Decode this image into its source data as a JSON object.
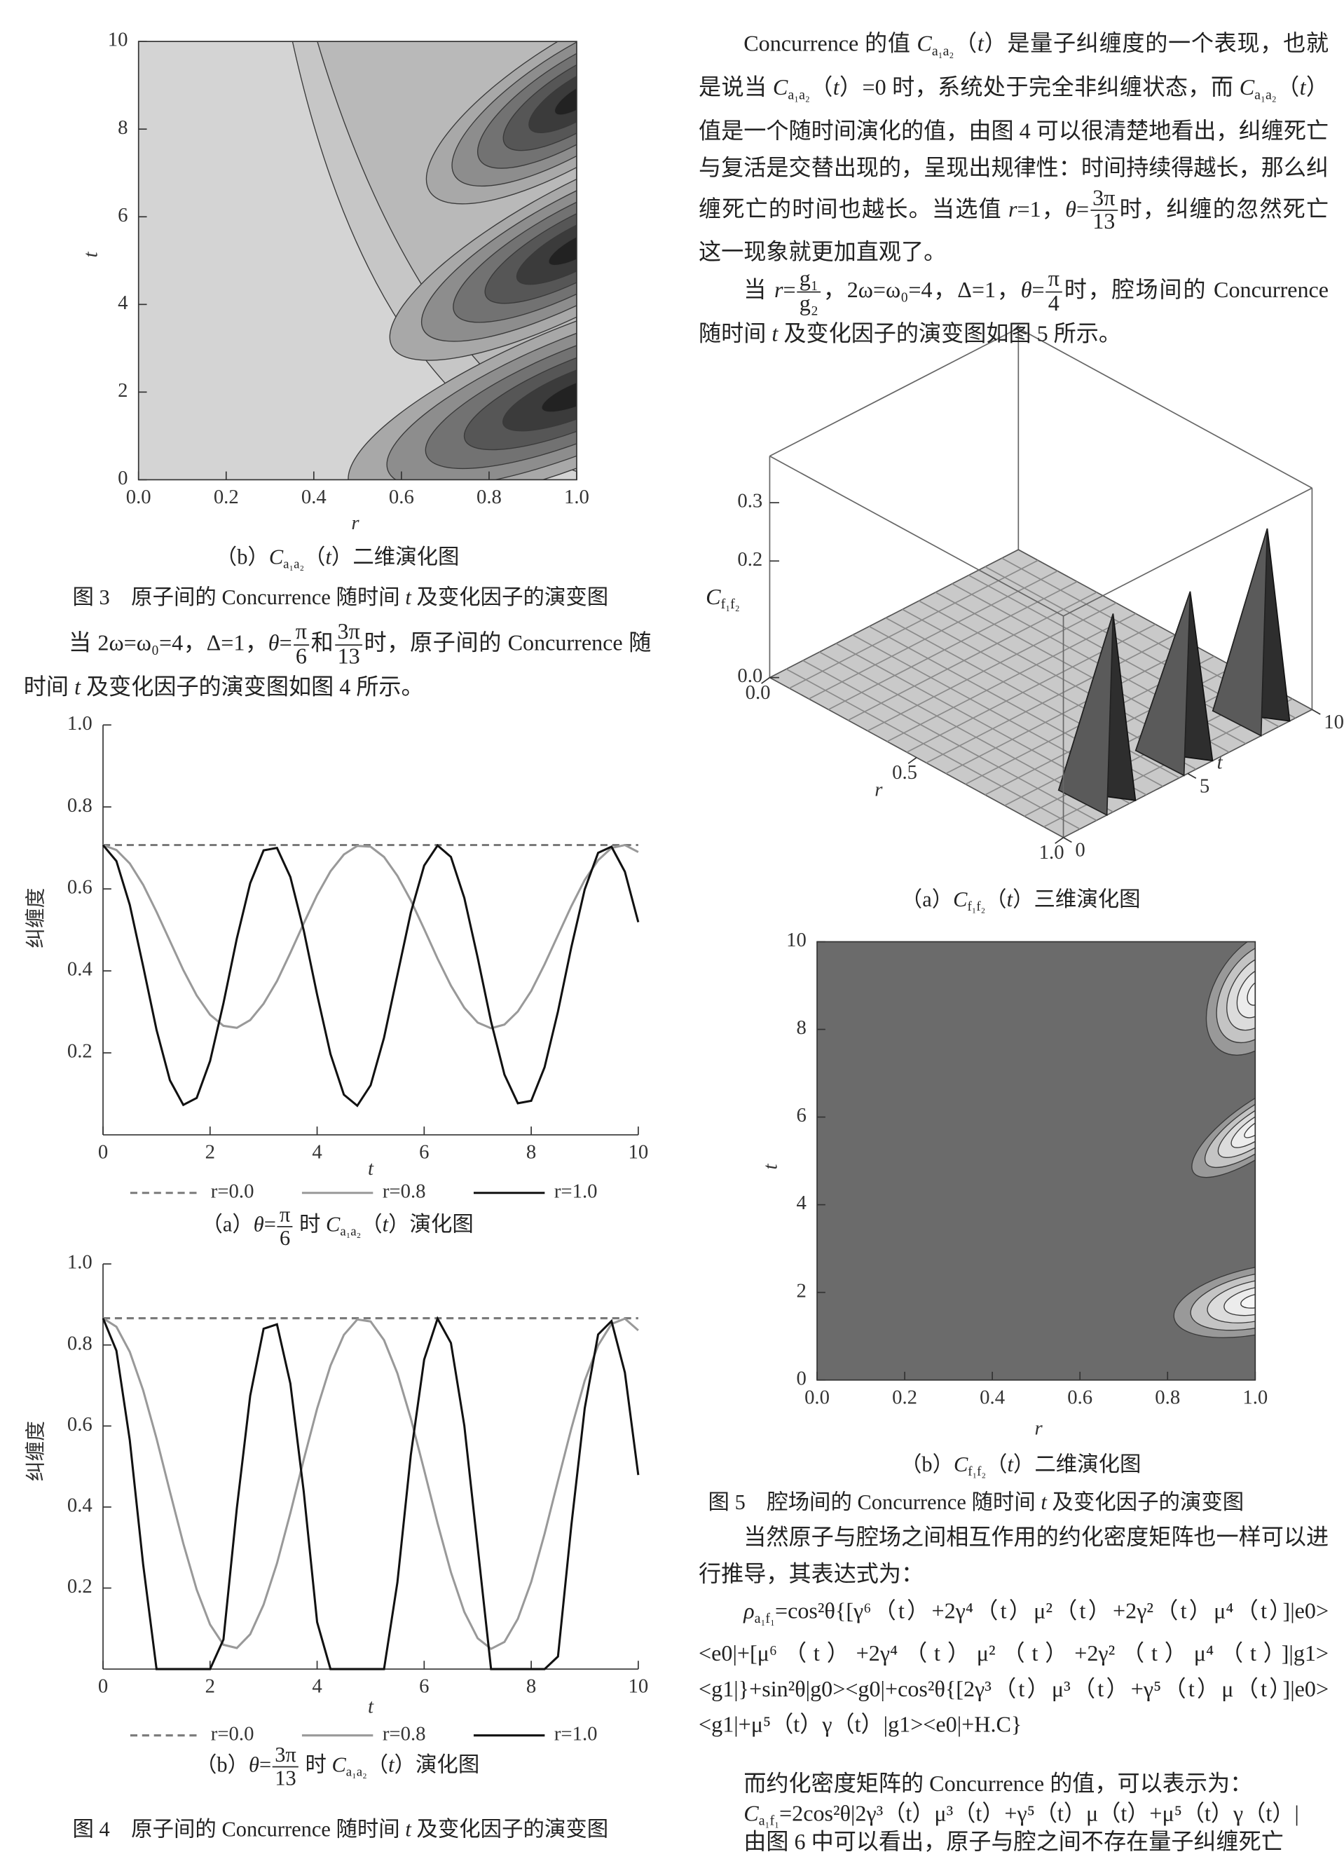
{
  "chart_data": [
    {
      "type": "contour",
      "xlabel": "r",
      "ylabel": "t",
      "xlim": [
        0,
        1
      ],
      "ylim": [
        0,
        10
      ],
      "xticks": [
        {
          "value": 0,
          "label": "0.0"
        },
        0.2,
        0.4,
        0.6,
        0.8,
        {
          "value": 1,
          "label": "1.0"
        }
      ],
      "yticks": [
        0,
        2,
        4,
        6,
        8,
        10
      ],
      "caption": [
        "（b）",
        {
          "i": "C"
        },
        {
          "sub": "a₁a₂"
        },
        "（",
        {
          "i": "t"
        },
        "）二维演化图"
      ]
    },
    {
      "type": "line",
      "xlabel": "t",
      "ylabel": "纠缠度",
      "xlim": [
        0,
        10
      ],
      "ylim": [
        0,
        1
      ],
      "xticks": [
        0,
        2,
        4,
        6,
        8,
        10
      ],
      "yticks": [
        0.2,
        0.4,
        0.6,
        0.8,
        {
          "value": 1,
          "label": "1.0"
        }
      ],
      "x": [
        0,
        0.25,
        0.5,
        0.75,
        1,
        1.25,
        1.5,
        1.75,
        2,
        2.25,
        2.5,
        2.75,
        3,
        3.25,
        3.5,
        3.75,
        4,
        4.25,
        4.5,
        4.75,
        5,
        5.25,
        5.5,
        5.75,
        6,
        6.25,
        6.5,
        6.75,
        7,
        7.25,
        7.5,
        7.75,
        8,
        8.25,
        8.5,
        8.75,
        9,
        9.25,
        9.5,
        9.75,
        10
      ],
      "series": [
        {
          "name": "r=0.0",
          "color": "#7a7a7a",
          "linestyle": "dashed",
          "values": [
            0.707,
            0.707,
            0.707,
            0.707,
            0.707,
            0.707,
            0.707,
            0.707,
            0.707,
            0.707,
            0.707,
            0.707,
            0.707,
            0.707,
            0.707,
            0.707,
            0.707,
            0.707,
            0.707,
            0.707,
            0.707,
            0.707,
            0.707,
            0.707,
            0.707,
            0.707,
            0.707,
            0.707,
            0.707,
            0.707,
            0.707,
            0.707,
            0.707,
            0.707,
            0.707,
            0.707,
            0.707,
            0.707,
            0.707,
            0.707,
            0.707
          ]
        },
        {
          "name": "r=0.8",
          "color": "#999999",
          "linestyle": "solid",
          "values": [
            0.707,
            0.695,
            0.662,
            0.61,
            0.544,
            0.473,
            0.402,
            0.34,
            0.293,
            0.266,
            0.261,
            0.28,
            0.32,
            0.375,
            0.444,
            0.516,
            0.585,
            0.643,
            0.684,
            0.705,
            0.703,
            0.678,
            0.632,
            0.572,
            0.502,
            0.43,
            0.364,
            0.31,
            0.274,
            0.26,
            0.269,
            0.301,
            0.351,
            0.416,
            0.487,
            0.558,
            0.622,
            0.67,
            0.7,
            0.707,
            0.69
          ]
        },
        {
          "name": "r=1.0",
          "color": "#111111",
          "linestyle": "solid",
          "values": [
            0.707,
            0.668,
            0.561,
            0.411,
            0.256,
            0.133,
            0.073,
            0.09,
            0.18,
            0.321,
            0.479,
            0.614,
            0.694,
            0.7,
            0.629,
            0.499,
            0.342,
            0.197,
            0.098,
            0.071,
            0.121,
            0.237,
            0.39,
            0.542,
            0.657,
            0.706,
            0.678,
            0.578,
            0.432,
            0.276,
            0.147,
            0.077,
            0.083,
            0.165,
            0.301,
            0.458,
            0.599,
            0.688,
            0.703,
            0.642,
            0.519
          ]
        }
      ],
      "caption": [
        "（a）",
        {
          "i": "θ"
        },
        "=",
        {
          "frac": [
            "π",
            "6"
          ]
        },
        " 时 ",
        {
          "i": "C"
        },
        {
          "sub": "a₁a₂"
        },
        "（",
        {
          "i": "t"
        },
        "）演化图"
      ]
    },
    {
      "type": "line",
      "xlabel": "t",
      "ylabel": "纠缠度",
      "xlim": [
        0,
        10
      ],
      "ylim": [
        0,
        1
      ],
      "xticks": [
        0,
        2,
        4,
        6,
        8,
        10
      ],
      "yticks": [
        0.2,
        0.4,
        0.6,
        0.8,
        {
          "value": 1,
          "label": "1.0"
        }
      ],
      "x": [
        0,
        0.25,
        0.5,
        0.75,
        1,
        1.25,
        1.5,
        1.75,
        2,
        2.25,
        2.5,
        2.75,
        3,
        3.25,
        3.5,
        3.75,
        4,
        4.25,
        4.5,
        4.75,
        5,
        5.25,
        5.5,
        5.75,
        6,
        6.25,
        6.5,
        6.75,
        7,
        7.25,
        7.5,
        7.75,
        8,
        8.25,
        8.5,
        8.75,
        9,
        9.25,
        9.5,
        9.75,
        10
      ],
      "series": [
        {
          "name": "r=0.0",
          "color": "#7a7a7a",
          "linestyle": "dashed",
          "values": [
            0.866,
            0.866,
            0.866,
            0.866,
            0.866,
            0.866,
            0.866,
            0.866,
            0.866,
            0.866,
            0.866,
            0.866,
            0.866,
            0.866,
            0.866,
            0.866,
            0.866,
            0.866,
            0.866,
            0.866,
            0.866,
            0.866,
            0.866,
            0.866,
            0.866,
            0.866,
            0.866,
            0.866,
            0.866,
            0.866,
            0.866,
            0.866,
            0.866,
            0.866,
            0.866,
            0.866,
            0.866,
            0.866,
            0.866,
            0.866,
            0.866
          ]
        },
        {
          "name": "r=0.8",
          "color": "#999999",
          "linestyle": "solid",
          "values": [
            0.866,
            0.845,
            0.783,
            0.688,
            0.569,
            0.438,
            0.31,
            0.196,
            0.11,
            0.06,
            0.052,
            0.086,
            0.159,
            0.261,
            0.385,
            0.517,
            0.643,
            0.749,
            0.825,
            0.863,
            0.858,
            0.812,
            0.73,
            0.619,
            0.491,
            0.36,
            0.239,
            0.141,
            0.076,
            0.05,
            0.067,
            0.124,
            0.215,
            0.334,
            0.465,
            0.594,
            0.712,
            0.799,
            0.852,
            0.865,
            0.836
          ]
        },
        {
          "name": "r=1.0",
          "color": "#111111",
          "linestyle": "solid",
          "values": [
            0.866,
            0.786,
            0.565,
            0.258,
            0,
            0,
            0,
            0,
            0,
            0.073,
            0.397,
            0.675,
            0.84,
            0.851,
            0.705,
            0.438,
            0.116,
            0,
            0,
            0,
            0,
            0,
            0.214,
            0.528,
            0.764,
            0.865,
            0.805,
            0.601,
            0.301,
            0,
            0,
            0,
            0,
            0,
            0.031,
            0.355,
            0.644,
            0.826,
            0.859,
            0.732,
            0.479
          ]
        }
      ],
      "caption": [
        "（b）",
        {
          "i": "θ"
        },
        "=",
        {
          "frac": [
            "3π",
            "13"
          ]
        },
        " 时 ",
        {
          "i": "C"
        },
        {
          "sub": "a₁a₂"
        },
        "（",
        {
          "i": "t"
        },
        "）演化图"
      ]
    },
    {
      "type": "surface3d",
      "xlabel": "r",
      "ylabel": "t",
      "zlabel": [
        {
          "i": "C"
        },
        {
          "sub": "f₁f₂"
        }
      ],
      "xlim": [
        0,
        1
      ],
      "ylim": [
        0,
        10
      ],
      "zlim": [
        0,
        0.38
      ],
      "xticks": [
        {
          "value": 0,
          "label": "0.0"
        },
        0.5,
        {
          "value": 1,
          "label": "1.0"
        }
      ],
      "yticks": [
        0,
        5,
        10
      ],
      "zticks": [
        {
          "value": 0,
          "label": "0.0"
        },
        0.2,
        0.3
      ],
      "caption": [
        "（a）",
        {
          "i": "C"
        },
        {
          "sub": "f₁f₂"
        },
        "（",
        {
          "i": "t"
        },
        "）三维演化图"
      ]
    },
    {
      "type": "contour",
      "xlabel": "r",
      "ylabel": "t",
      "xlim": [
        0,
        1
      ],
      "ylim": [
        0,
        10
      ],
      "xticks": [
        {
          "value": 0,
          "label": "0.0"
        },
        0.2,
        0.4,
        0.6,
        0.8,
        {
          "value": 1,
          "label": "1.0"
        }
      ],
      "yticks": [
        0,
        2,
        4,
        6,
        8,
        10
      ],
      "caption": [
        "（b）",
        {
          "i": "C"
        },
        {
          "sub": "f₁f₂"
        },
        "（",
        {
          "i": "t"
        },
        "）二维演化图"
      ]
    }
  ],
  "text": {
    "paragraph_1": [
      "Concurrence 的值 ",
      {
        "i": "C"
      },
      {
        "sub": "a₁a₂"
      },
      "（",
      {
        "i": "t"
      },
      "）是量子纠缠度的一个表现，也就是说当 ",
      {
        "i": "C"
      },
      {
        "sub": "a₁a₂"
      },
      "（",
      {
        "i": "t"
      },
      "）=0 时，系统处于完全非纠缠状态，而 ",
      {
        "i": "C"
      },
      {
        "sub": "a₁a₂"
      },
      "（",
      {
        "i": "t"
      },
      "）值是一个随时间演化的值，由图 4 可以很清楚地看出，纠缠死亡与复活是交替出现的，呈现出规律性：时间持续得越长，那么纠缠死亡的时间也越长。当选值 ",
      {
        "i": "r"
      },
      "=1，",
      {
        "i": "θ"
      },
      "=",
      {
        "frac": [
          "3π",
          "13"
        ]
      },
      "时，纠缠的忽然死亡这一现象就更加直观了。"
    ],
    "paragraph_2": [
      "当 ",
      {
        "i": "r"
      },
      "=",
      {
        "frac": [
          "g₁",
          "g₂"
        ]
      },
      "，2ω=ω₀=4，Δ=1，",
      {
        "i": "θ"
      },
      "=",
      {
        "frac": [
          "π",
          "4"
        ]
      },
      "时，腔场间的 Concurrence 随时间 ",
      {
        "i": "t"
      },
      " 及变化因子的演变图如图 5 所示。"
    ],
    "figure_3_caption": [
      "图 3　原子间的 Concurrence 随时间 ",
      {
        "i": "t"
      },
      " 及变化因子的演变图"
    ],
    "paragraph_3": [
      "当 2ω=ω₀=4，Δ=1，",
      {
        "i": "θ"
      },
      "=",
      {
        "frac": [
          "π",
          "6"
        ]
      },
      "和",
      {
        "frac": [
          "3π",
          "13"
        ]
      },
      "时，原子间的 Concurrence 随时间 ",
      {
        "i": "t"
      },
      " 及变化因子的演变图如图 4 所示。"
    ],
    "figure_4_caption": [
      "图 4　原子间的 Concurrence 随时间 ",
      {
        "i": "t"
      },
      " 及变化因子的演变图"
    ],
    "figure_5_caption": [
      "图 5　腔场间的 Concurrence 随时间 ",
      {
        "i": "t"
      },
      " 及变化因子的演变图"
    ],
    "paragraph_4": [
      "当然原子与腔场之间相互作用的约化密度矩阵也一样可以进行推导，其表达式为："
    ],
    "formula_1": [
      {
        "i": "ρ"
      },
      {
        "sub": "a₁f₁"
      },
      "=cos²θ{[γ⁶（t）+2γ⁴（t）μ²（t）+2γ²（t）μ⁴（t）]|e0><e0|+[μ⁶（t）+2γ⁴（t）μ²（t）+2γ²（t）μ⁴（t）]|g1><g1|}+sin²θ|g0><g0|+cos²θ{[2γ³（t）μ³（t）+γ⁵（t）μ（t）]|e0><g1|+μ⁵（t）γ（t）|g1><e0|+H.C}"
    ],
    "paragraph_5": [
      "而约化密度矩阵的 Concurrence 的值，可以表示为："
    ],
    "formula_2": [
      {
        "i": "C"
      },
      {
        "sub": "a₁f₁"
      },
      "=2cos²θ|2γ³（t）μ³（t）+γ⁵（t）μ（t）+μ⁵（t）γ（t）|"
    ],
    "paragraph_6": [
      "由图 6 中可以看出，原子与腔之间不存在量子纠缠死亡"
    ]
  }
}
